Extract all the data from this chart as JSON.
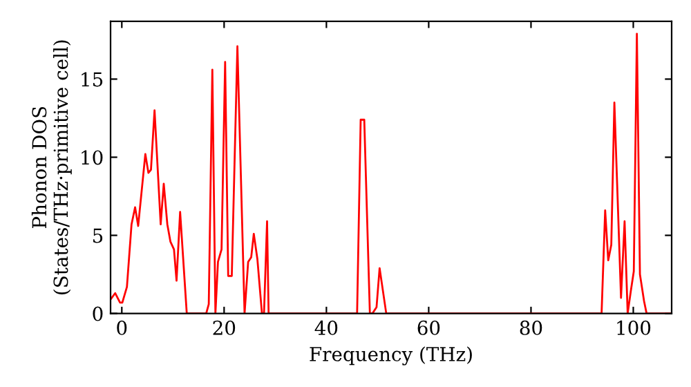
{
  "chart_data": {
    "type": "line",
    "xlabel": "Frequency (THz)",
    "ylabel": "Phonon DOS\n(States/THz·primitive cell)",
    "x": [
      -2.2,
      -1.3,
      -0.35,
      0.1,
      1.0,
      1.9,
      2.6,
      3.2,
      4.6,
      5.2,
      5.7,
      6.4,
      7.6,
      8.2,
      8.9,
      9.5,
      10.2,
      10.7,
      11.4,
      12.7,
      16.5,
      17.0,
      17.7,
      18.3,
      18.8,
      19.5,
      20.2,
      20.8,
      21.5,
      22.6,
      24.0,
      24.7,
      25.3,
      25.8,
      26.5,
      27.4,
      27.8,
      28.4,
      28.7,
      46.0,
      46.7,
      47.4,
      48.5,
      49.0,
      49.8,
      50.4,
      51.7,
      93.8,
      94.5,
      95.1,
      95.7,
      96.3,
      97.6,
      98.3,
      98.9,
      99.5,
      100.1,
      100.7,
      101.3,
      102.1,
      102.6,
      107.5
    ],
    "series": [
      {
        "color": "#ff0000",
        "values": [
          0.9,
          1.3,
          0.7,
          0.7,
          1.7,
          5.7,
          6.8,
          5.6,
          10.2,
          9.0,
          9.2,
          13.0,
          5.7,
          8.3,
          5.7,
          4.6,
          4.1,
          2.1,
          6.5,
          0,
          0,
          0.6,
          15.6,
          0,
          3.3,
          4.1,
          16.1,
          2.4,
          2.4,
          17.1,
          0,
          3.3,
          3.6,
          5.1,
          3.5,
          0,
          0,
          5.9,
          0,
          0,
          12.4,
          12.4,
          0,
          0,
          0.4,
          2.9,
          0,
          0,
          6.6,
          3.4,
          4.4,
          13.5,
          1.0,
          5.9,
          0,
          1.4,
          2.7,
          17.9,
          2.5,
          0.8,
          0,
          0
        ]
      }
    ],
    "xlim": [
      -2.2,
      107.5
    ],
    "ylim": [
      0,
      18.7
    ],
    "xticks": [
      0,
      20,
      40,
      60,
      80,
      100
    ],
    "yticks": [
      0,
      5,
      10,
      15
    ],
    "grid": false,
    "legend": false,
    "marker": "none",
    "line_style": "solid"
  }
}
